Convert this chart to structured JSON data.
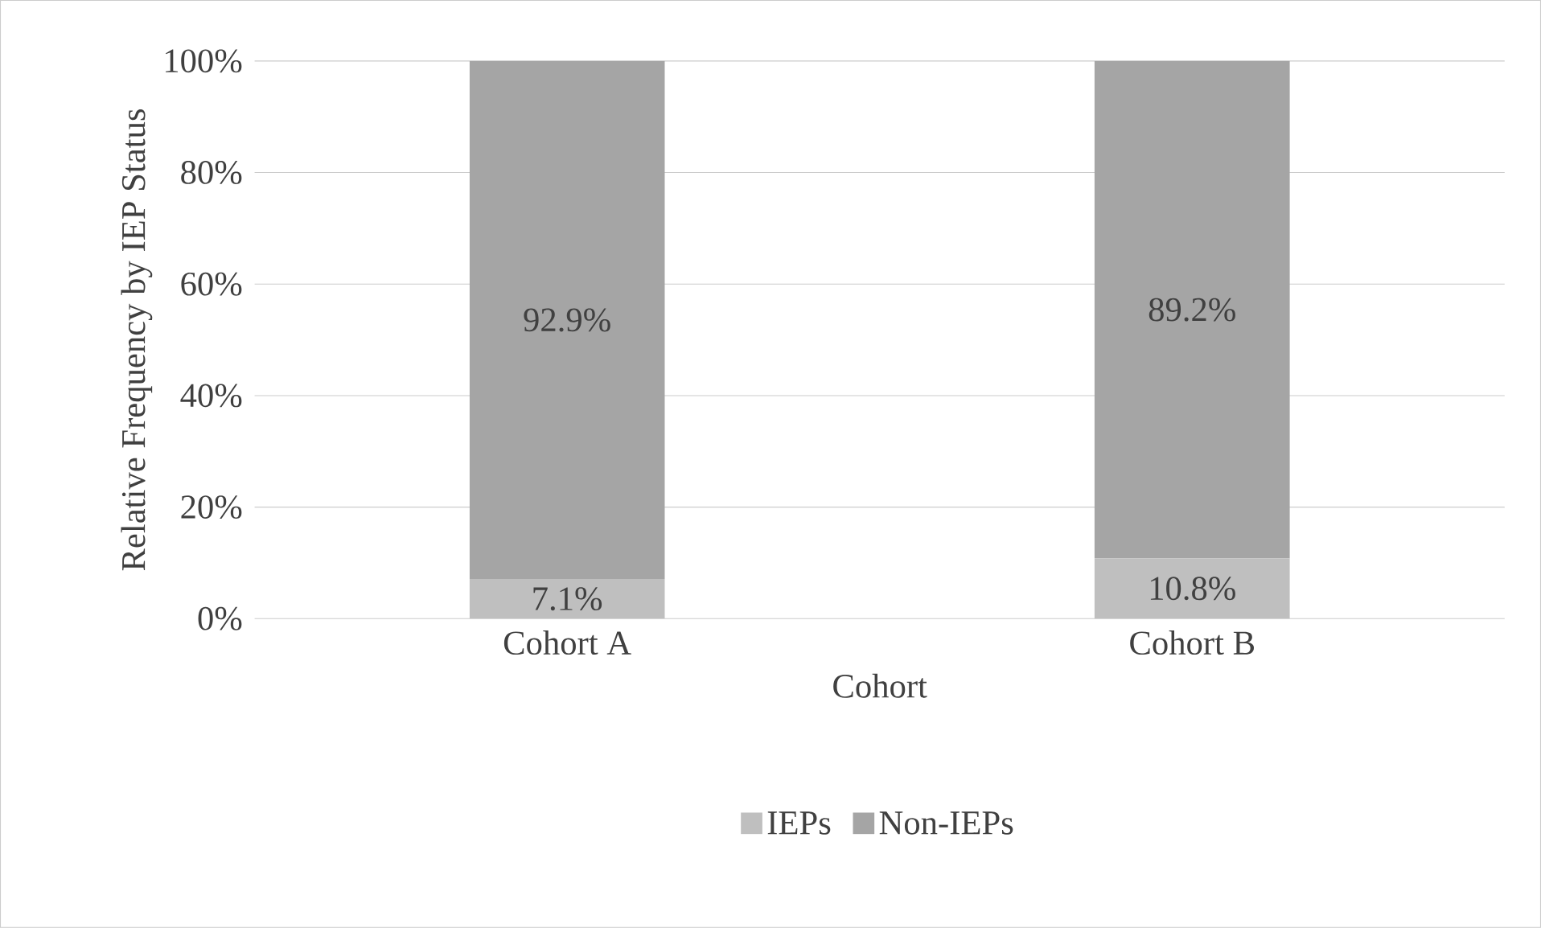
{
  "chart_data": {
    "type": "bar",
    "stacked": true,
    "xlabel": "Cohort",
    "ylabel": "Relative Frequency by IEP Status",
    "categories": [
      "Cohort A",
      "Cohort B"
    ],
    "series": [
      {
        "name": "IEPs",
        "color": "#bfbfbf",
        "values": [
          7.1,
          10.8
        ],
        "value_labels": [
          "7.1%",
          "10.8%"
        ]
      },
      {
        "name": "Non-IEPs",
        "color": "#a5a5a5",
        "values": [
          92.9,
          89.2
        ],
        "value_labels": [
          "92.9%",
          "89.2%"
        ]
      }
    ],
    "ylim": [
      0,
      100
    ],
    "yticks": [
      {
        "value": 0,
        "label": "0%"
      },
      {
        "value": 20,
        "label": "20%"
      },
      {
        "value": 40,
        "label": "40%"
      },
      {
        "value": 60,
        "label": "60%"
      },
      {
        "value": 80,
        "label": "80%"
      },
      {
        "value": 100,
        "label": "100%"
      }
    ],
    "grid": "y",
    "legend": "bottom"
  }
}
